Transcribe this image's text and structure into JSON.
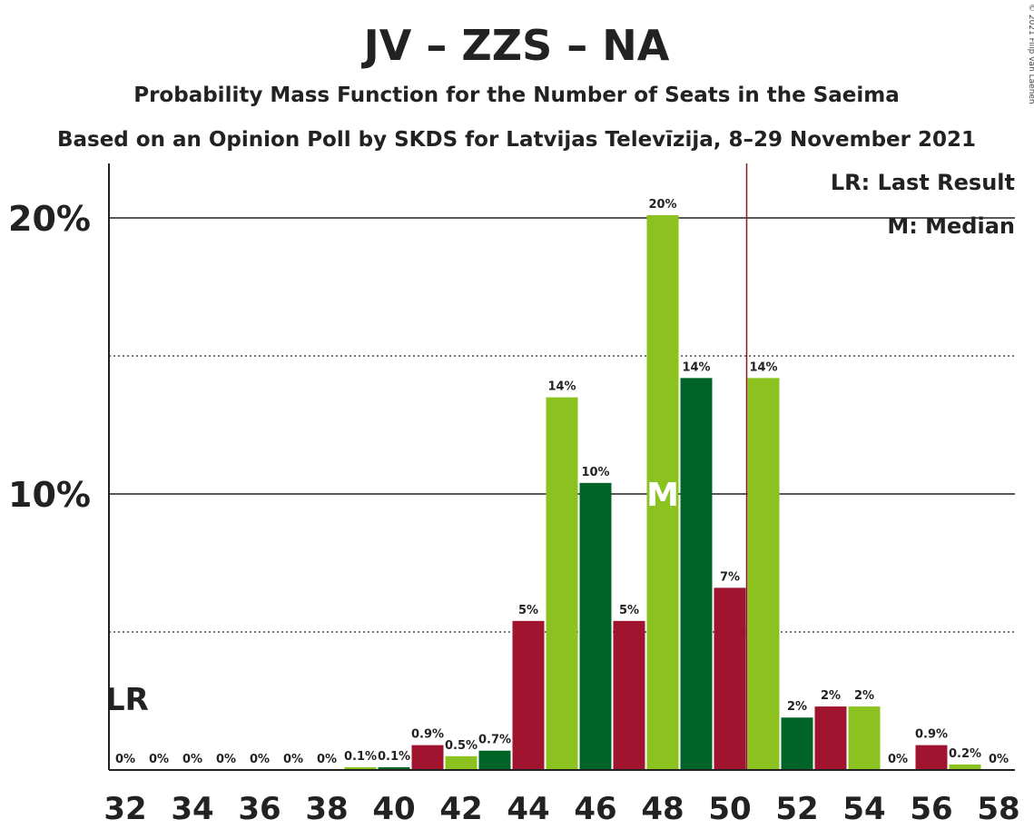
{
  "chart_data": {
    "type": "bar",
    "title": "JV – ZZS – NA",
    "subtitle": "Probability Mass Function for the Number of Seats in the Saeima",
    "subtitle2": "Based on an Opinion Poll by SKDS for Latvijas Televīzija, 8–29 November 2021",
    "copyright": "© 2021 Filip van Laenen",
    "legend": {
      "lr": "LR: Last Result",
      "median": "M: Median"
    },
    "ylim": [
      0,
      22
    ],
    "y_ticks": [
      {
        "value": 10,
        "label": "10%"
      },
      {
        "value": 20,
        "label": "20%"
      }
    ],
    "dotted_lines": [
      5,
      15
    ],
    "x_tick_labels": [
      "32",
      "34",
      "36",
      "38",
      "40",
      "42",
      "44",
      "46",
      "48",
      "50",
      "52",
      "54",
      "56",
      "58"
    ],
    "last_result": {
      "seat": 32,
      "label": "LR"
    },
    "median": {
      "seat": 48,
      "label": "M"
    },
    "majority_line_after_seat": 50,
    "colors": {
      "red": "#a0142f",
      "light_green": "#8bc21f",
      "dark_green": "#006428",
      "majority_line": "#8b1a1a"
    },
    "bars": [
      {
        "seat": 32,
        "value": 0,
        "label": "0%",
        "color": "red"
      },
      {
        "seat": 33,
        "value": 0,
        "label": "0%",
        "color": "light_green"
      },
      {
        "seat": 34,
        "value": 0,
        "label": "0%",
        "color": "dark_green"
      },
      {
        "seat": 35,
        "value": 0,
        "label": "0%",
        "color": "red"
      },
      {
        "seat": 36,
        "value": 0,
        "label": "0%",
        "color": "light_green"
      },
      {
        "seat": 37,
        "value": 0,
        "label": "0%",
        "color": "dark_green"
      },
      {
        "seat": 38,
        "value": 0,
        "label": "0%",
        "color": "red"
      },
      {
        "seat": 39,
        "value": 0.1,
        "label": "0.1%",
        "color": "light_green"
      },
      {
        "seat": 40,
        "value": 0.1,
        "label": "0.1%",
        "color": "dark_green"
      },
      {
        "seat": 41,
        "value": 0.9,
        "label": "0.9%",
        "color": "red"
      },
      {
        "seat": 42,
        "value": 0.5,
        "label": "0.5%",
        "color": "light_green"
      },
      {
        "seat": 43,
        "value": 0.7,
        "label": "0.7%",
        "color": "dark_green"
      },
      {
        "seat": 44,
        "value": 5.4,
        "label": "5%",
        "color": "red"
      },
      {
        "seat": 45,
        "value": 13.5,
        "label": "14%",
        "color": "light_green"
      },
      {
        "seat": 46,
        "value": 10.4,
        "label": "10%",
        "color": "dark_green"
      },
      {
        "seat": 47,
        "value": 5.4,
        "label": "5%",
        "color": "red"
      },
      {
        "seat": 48,
        "value": 20.1,
        "label": "20%",
        "color": "light_green"
      },
      {
        "seat": 49,
        "value": 14.2,
        "label": "14%",
        "color": "dark_green"
      },
      {
        "seat": 50,
        "value": 6.6,
        "label": "7%",
        "color": "red"
      },
      {
        "seat": 51,
        "value": 14.2,
        "label": "14%",
        "color": "light_green"
      },
      {
        "seat": 52,
        "value": 1.9,
        "label": "2%",
        "color": "dark_green"
      },
      {
        "seat": 53,
        "value": 2.3,
        "label": "2%",
        "color": "red"
      },
      {
        "seat": 54,
        "value": 2.3,
        "label": "2%",
        "color": "light_green"
      },
      {
        "seat": 55,
        "value": 0,
        "label": "0%",
        "color": "dark_green"
      },
      {
        "seat": 56,
        "value": 0.9,
        "label": "0.9%",
        "color": "red"
      },
      {
        "seat": 57,
        "value": 0.2,
        "label": "0.2%",
        "color": "light_green"
      },
      {
        "seat": 58,
        "value": 0,
        "label": "0%",
        "color": "dark_green"
      }
    ]
  }
}
